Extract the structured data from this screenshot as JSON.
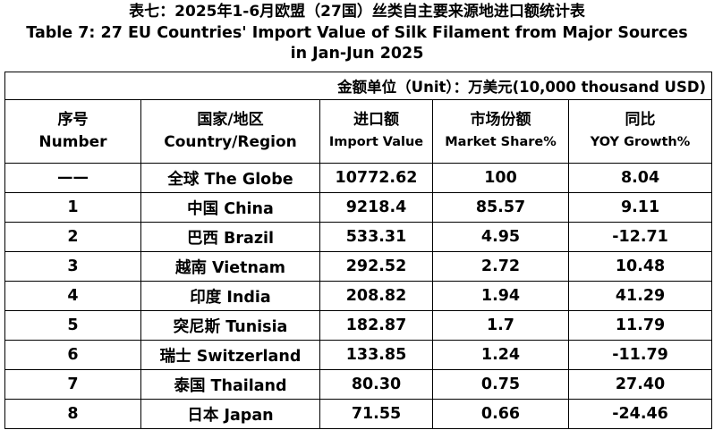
{
  "title": {
    "line1": "表七：2025年1-6月欧盟（27国）丝类自主要来源地进口额统计表",
    "line2": "Table 7: 27 EU Countries' Import Value of Silk Filament from Major Sources",
    "line3": "in Jan-Jun 2025"
  },
  "unit": "金额单位（Unit）：万美元(10,000 thousand USD)",
  "headers": [
    {
      "cn": "序号",
      "en": "Number"
    },
    {
      "cn": "国家/地区",
      "en": "Country/Region"
    },
    {
      "cn": "进口额",
      "en": "Import Value"
    },
    {
      "cn": "市场份额",
      "en": "Market Share%"
    },
    {
      "cn": "同比",
      "en": "YOY Growth%"
    }
  ],
  "rows": [
    {
      "number": "——",
      "country": "全球 The Globe",
      "import_value": "10772.62",
      "market_share": "100",
      "yoy": "8.04"
    },
    {
      "number": "1",
      "country": "中国 China",
      "import_value": "9218.4",
      "market_share": "85.57",
      "yoy": "9.11"
    },
    {
      "number": "2",
      "country": "巴西 Brazil",
      "import_value": "533.31",
      "market_share": "4.95",
      "yoy": "-12.71"
    },
    {
      "number": "3",
      "country": "越南 Vietnam",
      "import_value": "292.52",
      "market_share": "2.72",
      "yoy": "10.48"
    },
    {
      "number": "4",
      "country": "印度 India",
      "import_value": "208.82",
      "market_share": "1.94",
      "yoy": "41.29"
    },
    {
      "number": "5",
      "country": "突尼斯 Tunisia",
      "import_value": "182.87",
      "market_share": "1.7",
      "yoy": "11.79"
    },
    {
      "number": "6",
      "country": "瑞士 Switzerland",
      "import_value": "133.85",
      "market_share": "1.24",
      "yoy": "-11.79"
    },
    {
      "number": "7",
      "country": "泰国 Thailand",
      "import_value": "80.30",
      "market_share": "0.75",
      "yoy": "27.40"
    },
    {
      "number": "8",
      "country": "日本 Japan",
      "import_value": "71.55",
      "market_share": "0.66",
      "yoy": "-24.46"
    }
  ]
}
